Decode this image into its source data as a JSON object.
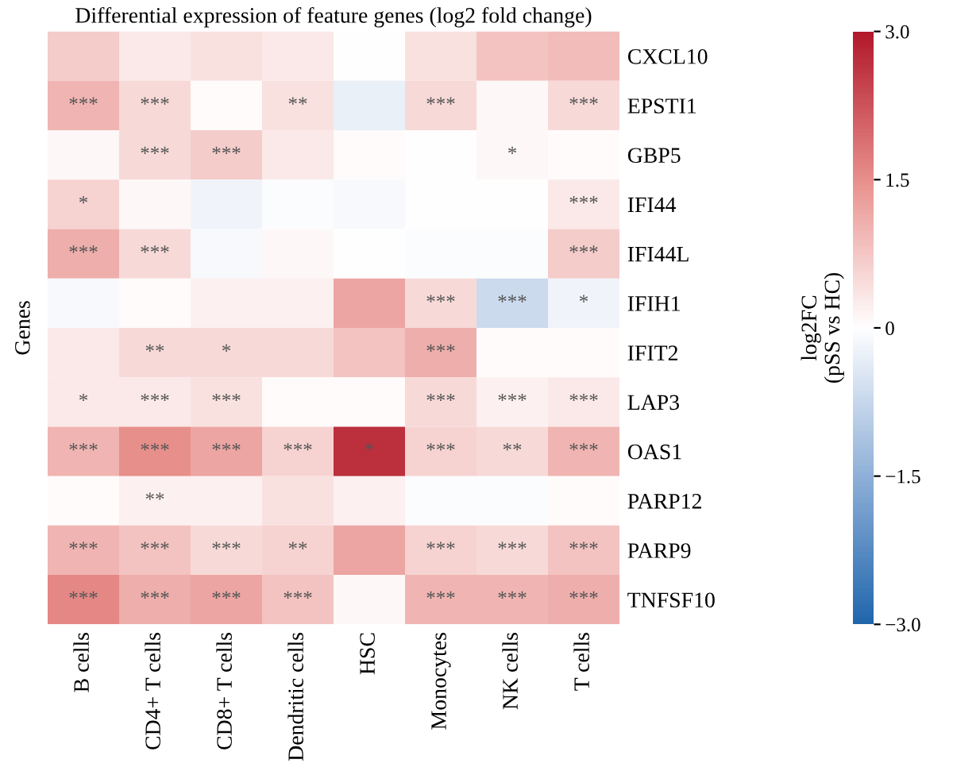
{
  "chart_data": {
    "type": "heatmap",
    "title": "Differential expression of feature genes (log2 fold change)",
    "ylabel": "Genes",
    "clabel": "log2FC\n(pSS vs HC)",
    "categories": [
      "B cells",
      "CD4+ T cells",
      "CD8+ T cells",
      "Dendritic cells",
      "HSC",
      "Monocytes",
      "NK cells",
      "T cells"
    ],
    "y_categories": [
      "CXCL10",
      "EPSTI1",
      "GBP5",
      "IFI44",
      "IFI44L",
      "IFIH1",
      "IFIT2",
      "LAP3",
      "OAS1",
      "PARP12",
      "PARP9",
      "TNFSF10"
    ],
    "cells": [
      [
        0.7,
        0.3,
        0.4,
        0.3,
        0.0,
        0.4,
        0.8,
        0.9
      ],
      [
        1.0,
        0.5,
        0.05,
        0.4,
        -0.3,
        0.5,
        0.1,
        0.5
      ],
      [
        0.1,
        0.5,
        0.7,
        0.3,
        0.05,
        0.0,
        0.1,
        0.05
      ],
      [
        0.6,
        0.1,
        -0.2,
        -0.05,
        -0.1,
        0.0,
        0.0,
        0.3
      ],
      [
        1.1,
        0.5,
        -0.1,
        0.1,
        0.0,
        -0.05,
        -0.05,
        0.7
      ],
      [
        -0.1,
        0.05,
        0.2,
        0.2,
        1.2,
        0.5,
        -0.7,
        -0.2
      ],
      [
        0.3,
        0.5,
        0.5,
        0.5,
        0.8,
        1.1,
        0.05,
        0.05
      ],
      [
        0.3,
        0.3,
        0.4,
        0.05,
        0.05,
        0.5,
        0.2,
        0.3
      ],
      [
        1.0,
        1.5,
        1.2,
        0.6,
        2.7,
        0.6,
        0.5,
        1.0
      ],
      [
        0.05,
        0.2,
        0.2,
        0.4,
        0.2,
        -0.05,
        -0.05,
        0.05
      ],
      [
        1.0,
        0.8,
        0.5,
        0.6,
        1.2,
        0.6,
        0.5,
        0.8
      ],
      [
        1.6,
        1.1,
        1.2,
        0.8,
        0.1,
        1.0,
        1.0,
        1.1
      ]
    ],
    "cell_labels": [
      [
        null,
        null,
        null,
        null,
        null,
        null,
        null,
        null
      ],
      [
        "***",
        "***",
        null,
        "**",
        null,
        "***",
        null,
        "***"
      ],
      [
        null,
        "***",
        "***",
        null,
        null,
        null,
        "*",
        null
      ],
      [
        "*",
        null,
        null,
        null,
        null,
        null,
        null,
        "***"
      ],
      [
        "***",
        "***",
        null,
        null,
        null,
        null,
        null,
        "***"
      ],
      [
        null,
        null,
        null,
        null,
        null,
        "***",
        "***",
        "*"
      ],
      [
        null,
        "**",
        "*",
        null,
        null,
        "***",
        null,
        null
      ],
      [
        "*",
        "***",
        "***",
        null,
        null,
        "***",
        "***",
        "***"
      ],
      [
        "***",
        "***",
        "***",
        "***",
        "*",
        "***",
        "**",
        "***"
      ],
      [
        null,
        "**",
        null,
        null,
        null,
        null,
        null,
        null
      ],
      [
        "***",
        "***",
        "***",
        "**",
        null,
        "***",
        "***",
        "***"
      ],
      [
        "***",
        "***",
        "***",
        "***",
        null,
        "***",
        "***",
        "***"
      ]
    ],
    "clim": [
      -3.0,
      3.0
    ],
    "cticks": [
      {
        "value": 3.0,
        "label": "3.0"
      },
      {
        "value": 1.5,
        "label": "1.5"
      },
      0,
      {
        "value": -1.5,
        "label": "−1.5"
      },
      {
        "value": -3.0,
        "label": "−3.0"
      }
    ]
  }
}
